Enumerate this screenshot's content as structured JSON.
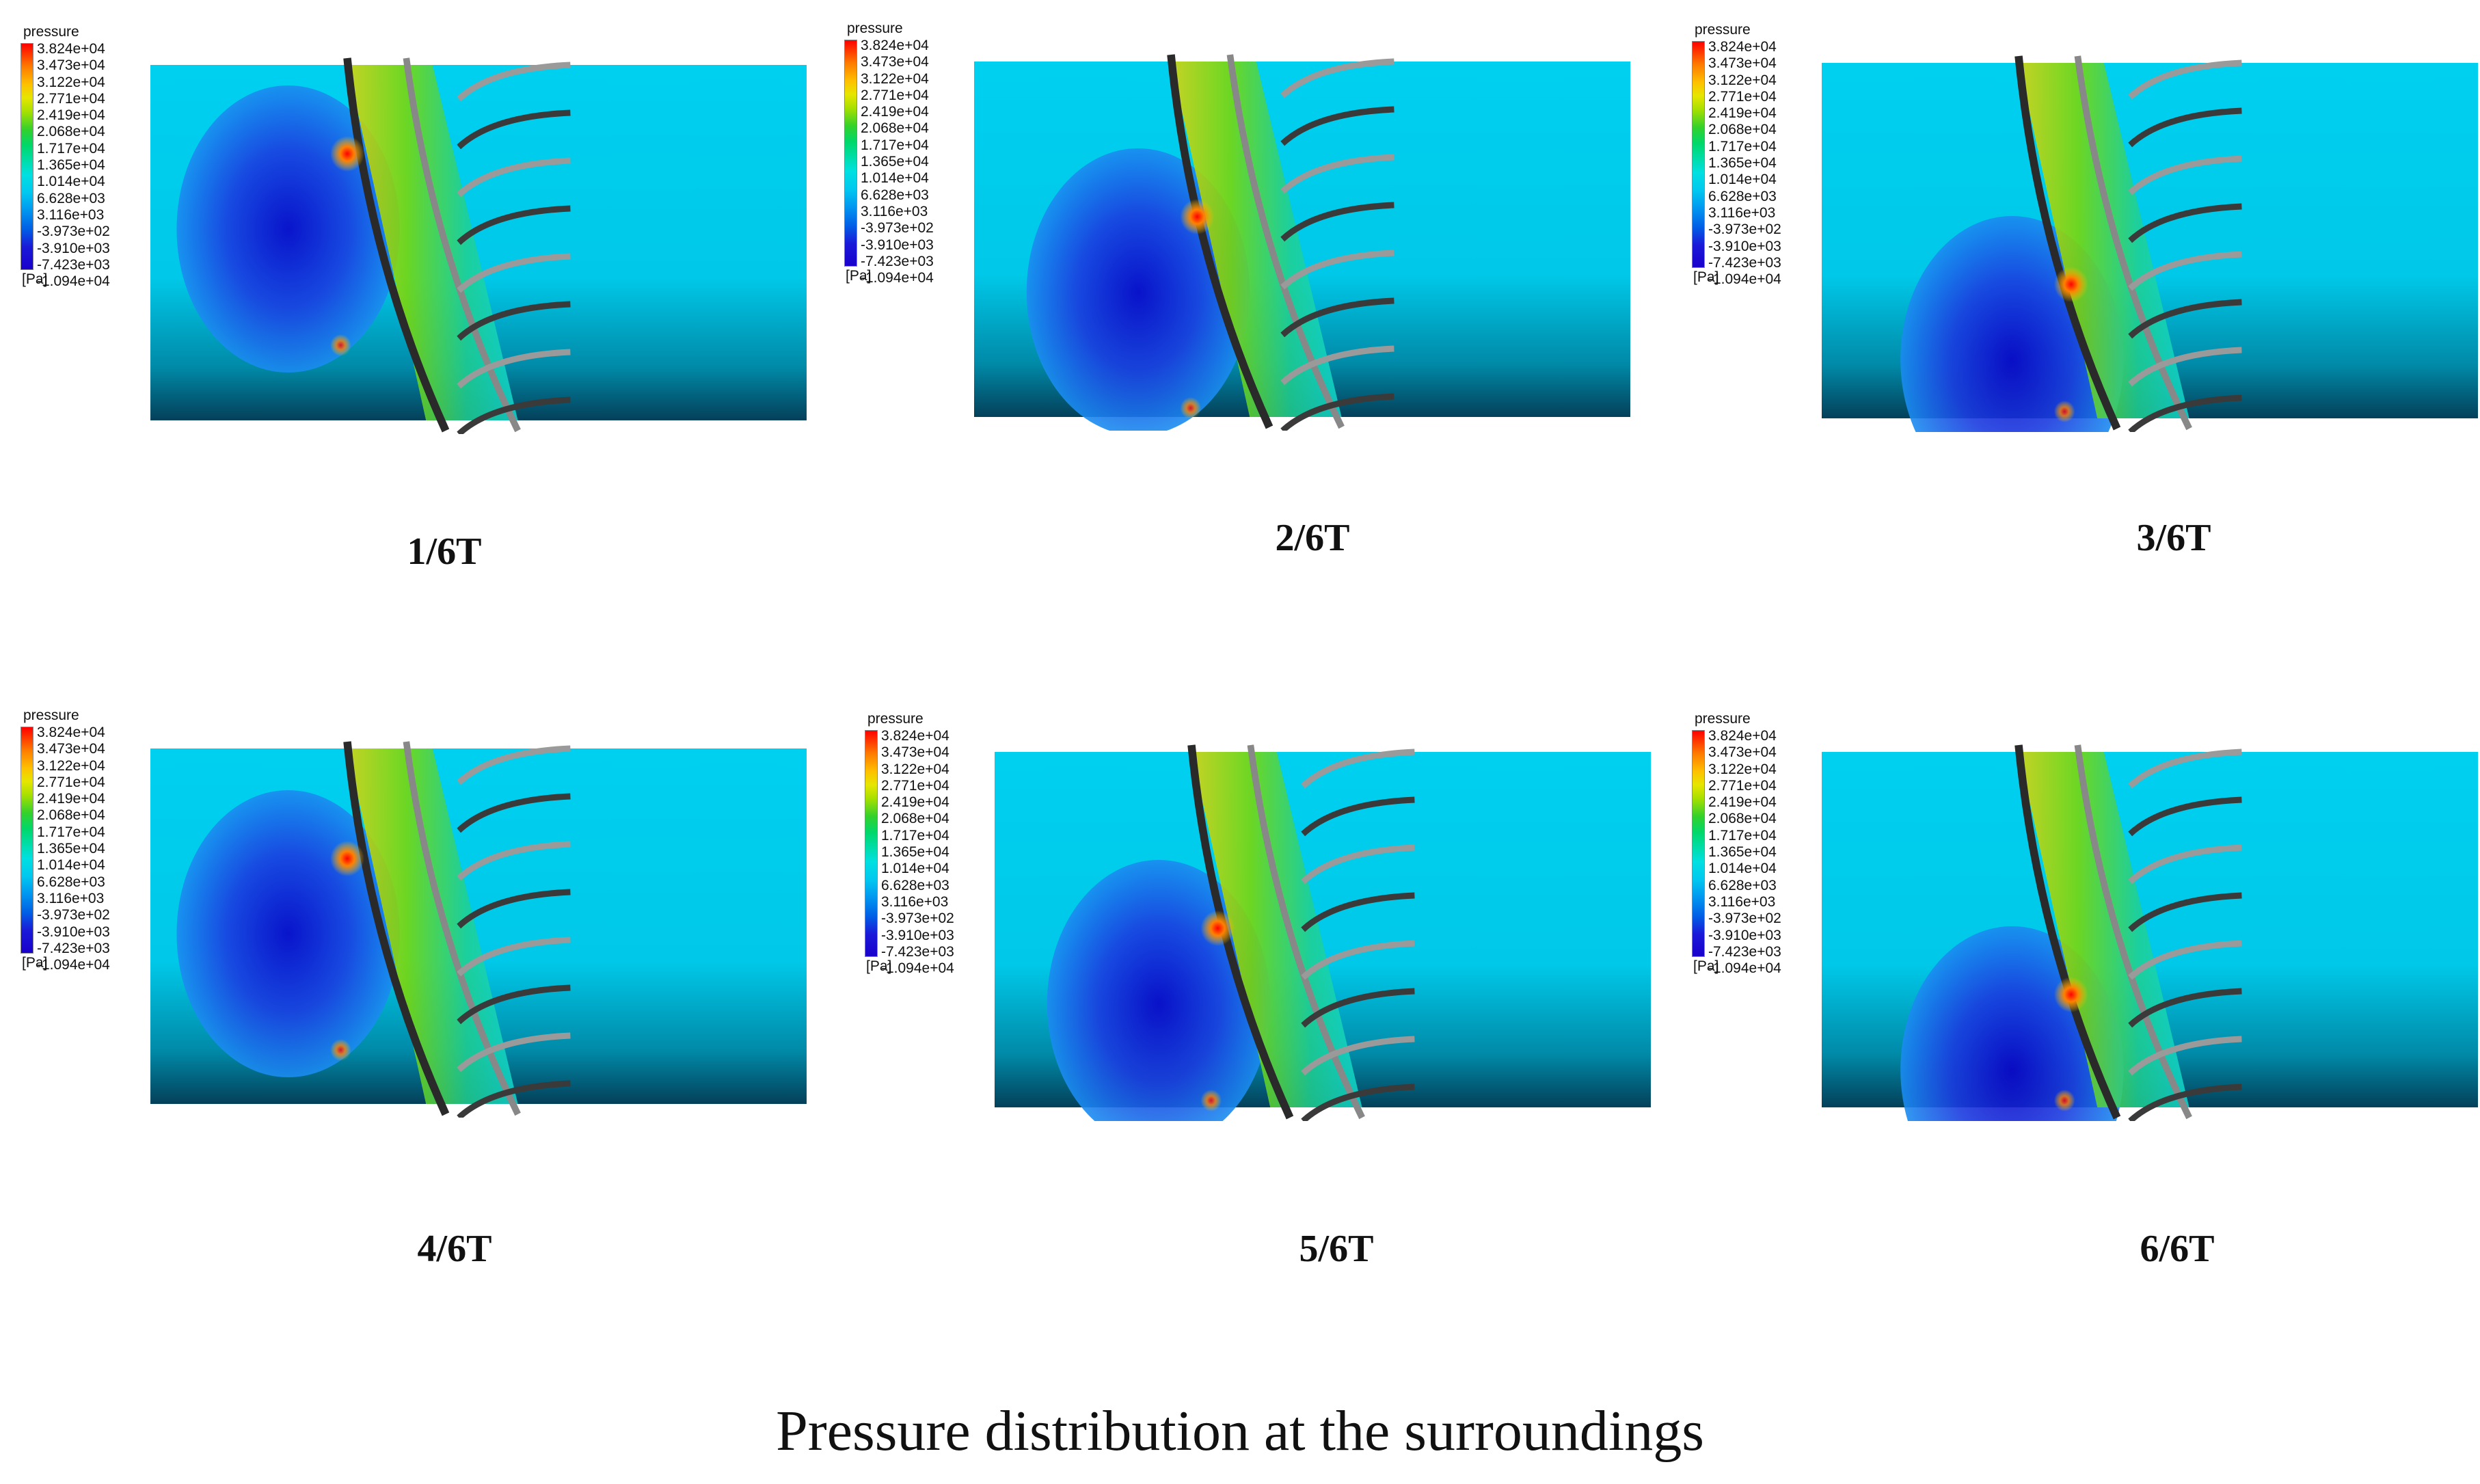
{
  "legend": {
    "title": "pressure",
    "unit": "[Pa]",
    "labels": [
      "3.824e+04",
      "3.473e+04",
      "3.122e+04",
      "2.771e+04",
      "2.419e+04",
      "2.068e+04",
      "1.717e+04",
      "1.365e+04",
      "1.014e+04",
      "6.628e+03",
      "3.116e+03",
      "-3.973e+02",
      "-3.910e+03",
      "-7.423e+03",
      "-1.094e+04"
    ]
  },
  "panels": [
    {
      "label": "1/6T"
    },
    {
      "label": "2/6T"
    },
    {
      "label": "3/6T"
    },
    {
      "label": "4/6T"
    },
    {
      "label": "5/6T"
    },
    {
      "label": "6/6T"
    }
  ],
  "caption": "Pressure distribution at the surroundings",
  "colors": {
    "high": "#ff0000",
    "mid": "#33d12b",
    "ambient": "#00e0f0",
    "low": "#1a00cc",
    "blade": "#888888"
  }
}
